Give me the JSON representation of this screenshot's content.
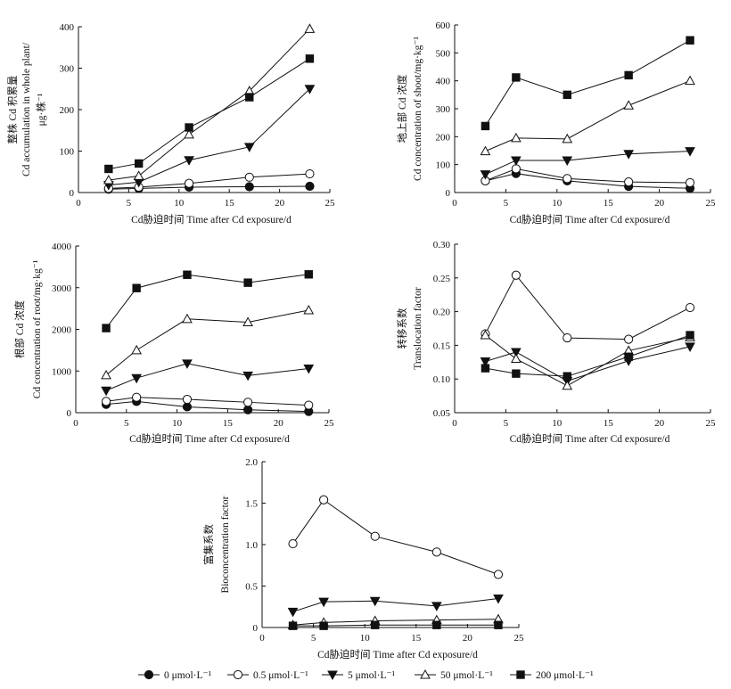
{
  "legend": [
    {
      "name": "0 μmol·L⁻¹",
      "marker": "filled-circle"
    },
    {
      "name": "0.5 μmol·L⁻¹",
      "marker": "open-circle"
    },
    {
      "name": "5 μmol·L⁻¹",
      "marker": "filled-triangle-down"
    },
    {
      "name": "50 μmol·L⁻¹",
      "marker": "open-triangle-up"
    },
    {
      "name": "200 μmol·L⁻¹",
      "marker": "filled-square"
    }
  ],
  "chart_data": [
    {
      "type": "line",
      "xlabel": "Cd胁迫时间 Time after Cd exposure/d",
      "ylabel_cn": "整株 Cd 积累量",
      "ylabel_en": "Cd accumulation in whole plant/",
      "ylabel_unit": "μg·株⁻¹",
      "xlim": [
        0,
        25
      ],
      "ylim": [
        0,
        400
      ],
      "xticks": [
        0,
        5,
        10,
        15,
        20,
        25
      ],
      "yticks": [
        0,
        100,
        200,
        300,
        400
      ],
      "x": [
        3,
        6,
        11,
        17,
        23
      ],
      "series": [
        {
          "name": "0 μmol·L⁻¹",
          "values": [
            8,
            10,
            13,
            14,
            15
          ]
        },
        {
          "name": "0.5 μmol·L⁻¹",
          "values": [
            10,
            13,
            22,
            37,
            45
          ]
        },
        {
          "name": "5 μmol·L⁻¹",
          "values": [
            18,
            25,
            78,
            110,
            250
          ]
        },
        {
          "name": "50 μmol·L⁻¹",
          "values": [
            30,
            40,
            140,
            245,
            395
          ]
        },
        {
          "name": "200 μmol·L⁻¹",
          "values": [
            57,
            70,
            157,
            230,
            323
          ]
        }
      ]
    },
    {
      "type": "line",
      "xlabel": "Cd胁迫时间 Time after Cd exposure/d",
      "ylabel_cn": "地上部 Cd 浓度",
      "ylabel_en": "Cd concentration of shoot/mg·kg⁻¹",
      "ylabel_unit": "",
      "xlim": [
        0,
        25
      ],
      "ylim": [
        0,
        600
      ],
      "xticks": [
        0,
        5,
        10,
        15,
        20,
        25
      ],
      "yticks": [
        0,
        100,
        200,
        300,
        400,
        500,
        600
      ],
      "x": [
        3,
        6,
        11,
        17,
        23
      ],
      "series": [
        {
          "name": "0 μmol·L⁻¹",
          "values": [
            42,
            68,
            42,
            22,
            15
          ]
        },
        {
          "name": "0.5 μmol·L⁻¹",
          "values": [
            42,
            85,
            50,
            38,
            35
          ]
        },
        {
          "name": "5 μmol·L⁻¹",
          "values": [
            65,
            115,
            115,
            138,
            148
          ]
        },
        {
          "name": "50 μmol·L⁻¹",
          "values": [
            148,
            195,
            192,
            312,
            400
          ]
        },
        {
          "name": "200 μmol·L⁻¹",
          "values": [
            238,
            412,
            350,
            420,
            545
          ]
        }
      ]
    },
    {
      "type": "line",
      "xlabel": "Cd胁迫时间 Time after Cd exposure/d",
      "ylabel_cn": "根部 Cd 浓度",
      "ylabel_en": "Cd concentration of root/mg·kg⁻¹",
      "ylabel_unit": "",
      "xlim": [
        0,
        25
      ],
      "ylim": [
        0,
        4000
      ],
      "xticks": [
        0,
        5,
        10,
        15,
        20,
        25
      ],
      "yticks": [
        0,
        1000,
        2000,
        3000,
        4000
      ],
      "x": [
        3,
        6,
        11,
        17,
        23
      ],
      "series": [
        {
          "name": "0 μmol·L⁻¹",
          "values": [
            200,
            270,
            140,
            70,
            30
          ]
        },
        {
          "name": "0.5 μmol·L⁻¹",
          "values": [
            270,
            370,
            320,
            250,
            180
          ]
        },
        {
          "name": "5 μmol·L⁻¹",
          "values": [
            530,
            830,
            1180,
            890,
            1060
          ]
        },
        {
          "name": "50 μmol·L⁻¹",
          "values": [
            900,
            1500,
            2250,
            2170,
            2460
          ]
        },
        {
          "name": "200 μmol·L⁻¹",
          "values": [
            2030,
            2990,
            3310,
            3120,
            3320
          ]
        }
      ]
    },
    {
      "type": "line",
      "xlabel": "Cd胁迫时间 Time after Cd exposure/d",
      "ylabel_cn": "转移系数",
      "ylabel_en": "Translocation factor",
      "ylabel_unit": "",
      "xlim": [
        0,
        25
      ],
      "ylim": [
        0.05,
        0.3
      ],
      "xticks": [
        0,
        5,
        10,
        15,
        20,
        25
      ],
      "yticks": [
        0.05,
        0.1,
        0.15,
        0.2,
        0.25,
        0.3
      ],
      "ytick_labels": [
        "0.05",
        "0.10",
        "0.15",
        "0.20",
        "0.25",
        "0.30"
      ],
      "x": [
        3,
        6,
        11,
        17,
        23
      ],
      "series": [
        {
          "name": "0 μmol·L⁻¹",
          "values": [
            null,
            null,
            null,
            null,
            null
          ]
        },
        {
          "name": "0.5 μmol·L⁻¹",
          "values": [
            0.167,
            0.254,
            0.161,
            0.159,
            0.206
          ]
        },
        {
          "name": "5 μmol·L⁻¹",
          "values": [
            0.126,
            0.14,
            0.097,
            0.127,
            0.148
          ]
        },
        {
          "name": "50 μmol·L⁻¹",
          "values": [
            0.165,
            0.13,
            0.09,
            0.142,
            0.162
          ]
        },
        {
          "name": "200 μmol·L⁻¹",
          "values": [
            0.116,
            0.108,
            0.104,
            0.133,
            0.165
          ]
        }
      ]
    },
    {
      "type": "line",
      "xlabel": "Cd胁迫时间 Time after Cd exposure/d",
      "ylabel_cn": "富集系数",
      "ylabel_en": "Bioconcentration factor",
      "ylabel_unit": "",
      "xlim": [
        0,
        25
      ],
      "ylim": [
        0,
        2.0
      ],
      "xticks": [
        0,
        5,
        10,
        15,
        20,
        25
      ],
      "yticks": [
        0,
        0.5,
        1.0,
        1.5,
        2.0
      ],
      "ytick_labels": [
        "0",
        "0.5",
        "1.0",
        "1.5",
        "2.0"
      ],
      "x": [
        3,
        6,
        11,
        17,
        23
      ],
      "series": [
        {
          "name": "0 μmol·L⁻¹",
          "values": [
            null,
            null,
            null,
            null,
            null
          ]
        },
        {
          "name": "0.5 μmol·L⁻¹",
          "values": [
            1.01,
            1.54,
            1.1,
            0.91,
            0.64
          ]
        },
        {
          "name": "5 μmol·L⁻¹",
          "values": [
            0.19,
            0.31,
            0.32,
            0.26,
            0.35
          ]
        },
        {
          "name": "50 μmol·L⁻¹",
          "values": [
            0.03,
            0.06,
            0.08,
            0.09,
            0.1
          ]
        },
        {
          "name": "200 μmol·L⁻¹",
          "values": [
            0.02,
            0.02,
            0.03,
            0.03,
            0.03
          ]
        }
      ]
    }
  ]
}
